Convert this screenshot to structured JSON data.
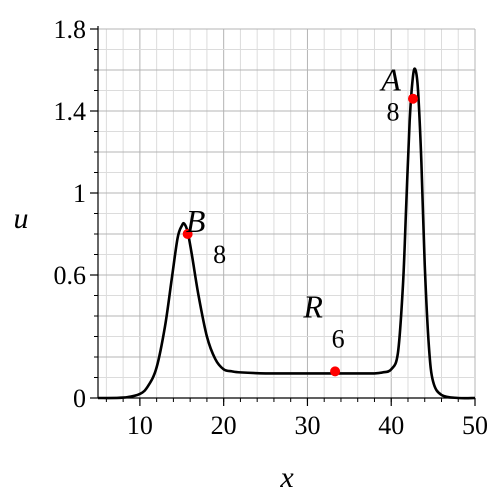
{
  "chart_data": {
    "type": "line",
    "title": "",
    "xlabel": "x",
    "ylabel": "u",
    "xlim": [
      5,
      50
    ],
    "ylim": [
      0,
      1.8
    ],
    "xticks": [
      10,
      20,
      30,
      40,
      50
    ],
    "xtick_labels": [
      "10",
      "20",
      "30",
      "40",
      "50"
    ],
    "yticks": [
      0,
      0.6,
      1,
      1.4,
      1.8
    ],
    "ytick_labels": [
      "0",
      "0.6",
      "1",
      "1.4",
      "1.8"
    ],
    "grid": true,
    "colors": {
      "line": "#000000",
      "point": "#ff0000",
      "grid": "#c8c8c8"
    },
    "series": [
      {
        "x": [
          5,
          8,
          10,
          11,
          12,
          13,
          13.8,
          14.5,
          15,
          15.3,
          15.7,
          16.2,
          17,
          18,
          19,
          20,
          21,
          22,
          25,
          30,
          33,
          36,
          38,
          39,
          40,
          40.8,
          41.4,
          41.8,
          42.2,
          42.6,
          42.9,
          43.2,
          43.6,
          44,
          44.5,
          45,
          46,
          48,
          50
        ],
        "y": [
          0,
          0.002,
          0.02,
          0.06,
          0.15,
          0.35,
          0.58,
          0.78,
          0.84,
          0.85,
          0.81,
          0.7,
          0.5,
          0.3,
          0.19,
          0.14,
          0.13,
          0.125,
          0.12,
          0.12,
          0.12,
          0.12,
          0.12,
          0.125,
          0.14,
          0.22,
          0.55,
          0.95,
          1.35,
          1.57,
          1.6,
          1.5,
          1.15,
          0.65,
          0.25,
          0.08,
          0.015,
          0,
          0
        ]
      }
    ],
    "points": [
      {
        "x": 15.7,
        "y": 0.8,
        "label": "B",
        "sub": "8",
        "label_pos": "upper-right"
      },
      {
        "x": 33.3,
        "y": 0.13,
        "label": "R",
        "sub": "6",
        "label_pos": "above"
      },
      {
        "x": 42.6,
        "y": 1.46,
        "label": "A",
        "sub": "8",
        "label_pos": "upper-left"
      }
    ]
  }
}
